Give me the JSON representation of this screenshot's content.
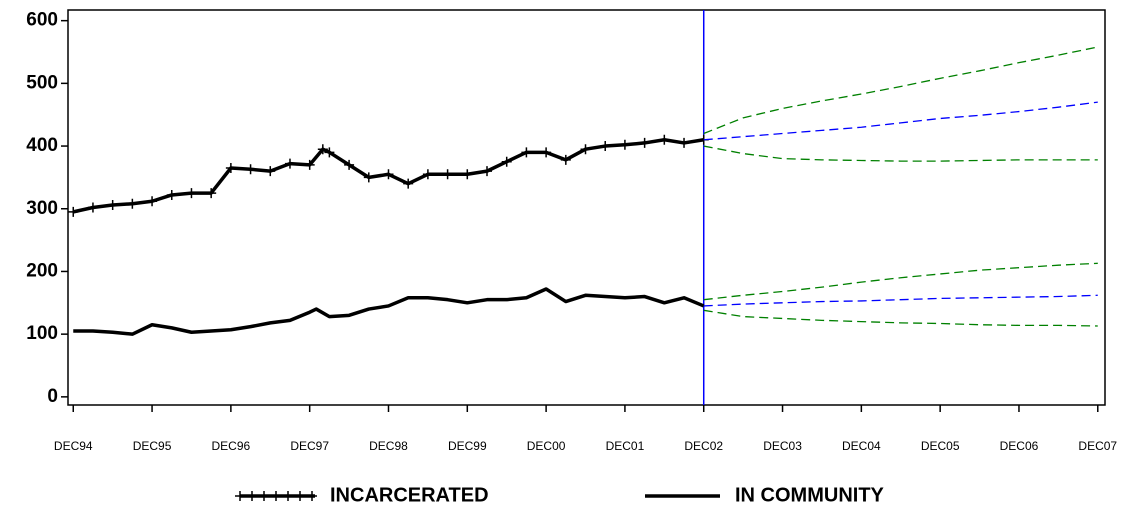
{
  "chart_data": {
    "type": "line",
    "xlim": [
      -0.8,
      157.1
    ],
    "xticks": [
      {
        "value": 0,
        "label": "DEC94"
      },
      {
        "value": 12,
        "label": "DEC95"
      },
      {
        "value": 24,
        "label": "DEC96"
      },
      {
        "value": 36,
        "label": "DEC97"
      },
      {
        "value": 48,
        "label": "DEC98"
      },
      {
        "value": 60,
        "label": "DEC99"
      },
      {
        "value": 72,
        "label": "DEC00"
      },
      {
        "value": 84,
        "label": "DEC01"
      },
      {
        "value": 96,
        "label": "DEC02"
      },
      {
        "value": 108,
        "label": "DEC03"
      },
      {
        "value": 120,
        "label": "DEC04"
      },
      {
        "value": 132,
        "label": "DEC05"
      },
      {
        "value": 144,
        "label": "DEC06"
      },
      {
        "value": 156,
        "label": "DEC07"
      }
    ],
    "ylim": [
      -13,
      617
    ],
    "yticks": [
      0,
      100,
      200,
      300,
      400,
      500,
      600
    ],
    "reference_line": 96,
    "reference_color": "#0000ff",
    "series": [
      {
        "name": "INCARCERATED",
        "color": "#000000",
        "marker": "plus",
        "x": [
          0,
          3,
          6,
          9,
          12,
          15,
          18,
          21,
          24,
          27,
          30,
          33,
          36,
          38,
          39,
          42,
          45,
          48,
          51,
          54,
          57,
          60,
          63,
          66,
          69,
          72,
          75,
          78,
          81,
          84,
          87,
          90,
          93,
          96
        ],
        "values": [
          295,
          302,
          306,
          308,
          312,
          322,
          325,
          325,
          365,
          363,
          360,
          372,
          370,
          395,
          390,
          370,
          350,
          355,
          340,
          355,
          355,
          355,
          360,
          375,
          390,
          390,
          378,
          395,
          400,
          402,
          405,
          410,
          405,
          410
        ]
      },
      {
        "name": "IN COMMUNITY",
        "color": "#000000",
        "x": [
          0,
          3,
          6,
          9,
          12,
          15,
          18,
          21,
          24,
          27,
          30,
          33,
          36,
          37,
          39,
          42,
          45,
          48,
          51,
          54,
          57,
          60,
          63,
          66,
          69,
          72,
          75,
          78,
          81,
          84,
          87,
          90,
          93,
          96
        ],
        "values": [
          105,
          105,
          103,
          100,
          115,
          110,
          103,
          105,
          107,
          112,
          118,
          122,
          135,
          140,
          128,
          130,
          140,
          145,
          158,
          158,
          155,
          150,
          155,
          155,
          158,
          172,
          152,
          162,
          160,
          158,
          160,
          150,
          158,
          145
        ]
      },
      {
        "color": "#0000ff",
        "dashed": true,
        "x": [
          96,
          102,
          108,
          114,
          120,
          126,
          132,
          138,
          144,
          150,
          156
        ],
        "values": [
          410,
          415,
          420,
          425,
          430,
          437,
          444,
          449,
          455,
          462,
          470
        ]
      },
      {
        "color": "#008000",
        "dashed": true,
        "x": [
          96,
          102,
          108,
          114,
          120,
          126,
          132,
          138,
          144,
          150,
          156
        ],
        "values": [
          420,
          445,
          460,
          472,
          483,
          495,
          508,
          520,
          533,
          545,
          558
        ]
      },
      {
        "color": "#008000",
        "dashed": true,
        "x": [
          96,
          102,
          108,
          114,
          120,
          126,
          132,
          138,
          144,
          150,
          156
        ],
        "values": [
          400,
          388,
          380,
          378,
          377,
          376,
          376,
          377,
          378,
          378,
          378
        ]
      },
      {
        "color": "#0000ff",
        "dashed": true,
        "x": [
          96,
          102,
          108,
          114,
          120,
          126,
          132,
          138,
          144,
          150,
          156
        ],
        "values": [
          145,
          148,
          150,
          152,
          153,
          155,
          157,
          158,
          159,
          160,
          162
        ]
      },
      {
        "color": "#008000",
        "dashed": true,
        "x": [
          96,
          102,
          108,
          114,
          120,
          126,
          132,
          138,
          144,
          150,
          156
        ],
        "values": [
          155,
          162,
          168,
          175,
          183,
          190,
          196,
          202,
          206,
          210,
          213
        ]
      },
      {
        "color": "#008000",
        "dashed": true,
        "x": [
          96,
          102,
          108,
          114,
          120,
          126,
          132,
          138,
          144,
          150,
          156
        ],
        "values": [
          138,
          128,
          125,
          122,
          120,
          118,
          117,
          115,
          114,
          114,
          113
        ]
      }
    ]
  }
}
